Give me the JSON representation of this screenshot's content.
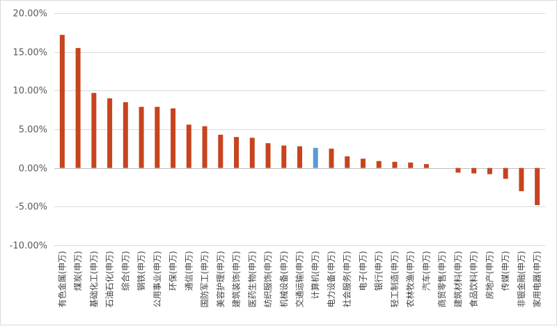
{
  "chart_data": {
    "type": "bar",
    "title": "",
    "xlabel": "",
    "ylabel": "",
    "ylim": [
      -0.1,
      0.2
    ],
    "yticks": [
      0.2,
      0.15,
      0.1,
      0.05,
      0.0,
      -0.05,
      -0.1
    ],
    "ytick_labels": [
      "20.00%",
      "15.00%",
      "10.00%",
      "5.00%",
      "0.00%",
      "-5.00%",
      "-10.00%"
    ],
    "grid": "horizontal",
    "legend": "none",
    "categories": [
      "有色金属(申万)",
      "煤炭(申万)",
      "基础化工(申万)",
      "石油石化(申万)",
      "综合(申万)",
      "钢铁(申万)",
      "公用事业(申万)",
      "环保(申万)",
      "通信(申万)",
      "国防军工(申万)",
      "美容护理(申万)",
      "建筑装饰(申万)",
      "医药生物(申万)",
      "纺织服饰(申万)",
      "机械设备(申万)",
      "交通运输(申万)",
      "计算机(申万)",
      "电力设备(申万)",
      "社会服务(申万)",
      "电子(申万)",
      "银行(申万)",
      "轻工制造(申万)",
      "农林牧渔(申万)",
      "汽车(申万)",
      "商贸零售(申万)",
      "建筑材料(申万)",
      "食品饮料(申万)",
      "房地产(申万)",
      "传媒(申万)",
      "非银金融(申万)",
      "家用电器(申万)"
    ],
    "values": [
      0.172,
      0.155,
      0.097,
      0.09,
      0.085,
      0.079,
      0.079,
      0.077,
      0.056,
      0.054,
      0.043,
      0.04,
      0.039,
      0.032,
      0.029,
      0.028,
      0.026,
      0.025,
      0.015,
      0.012,
      0.009,
      0.008,
      0.007,
      0.005,
      0.0,
      -0.006,
      -0.007,
      -0.008,
      -0.014,
      -0.03,
      -0.048
    ],
    "highlight_index": 16,
    "colors": {
      "bar": "#c6441e",
      "highlight": "#5b9bd5",
      "grid": "#d9d9d9",
      "axis": "#bfbfbf"
    }
  }
}
